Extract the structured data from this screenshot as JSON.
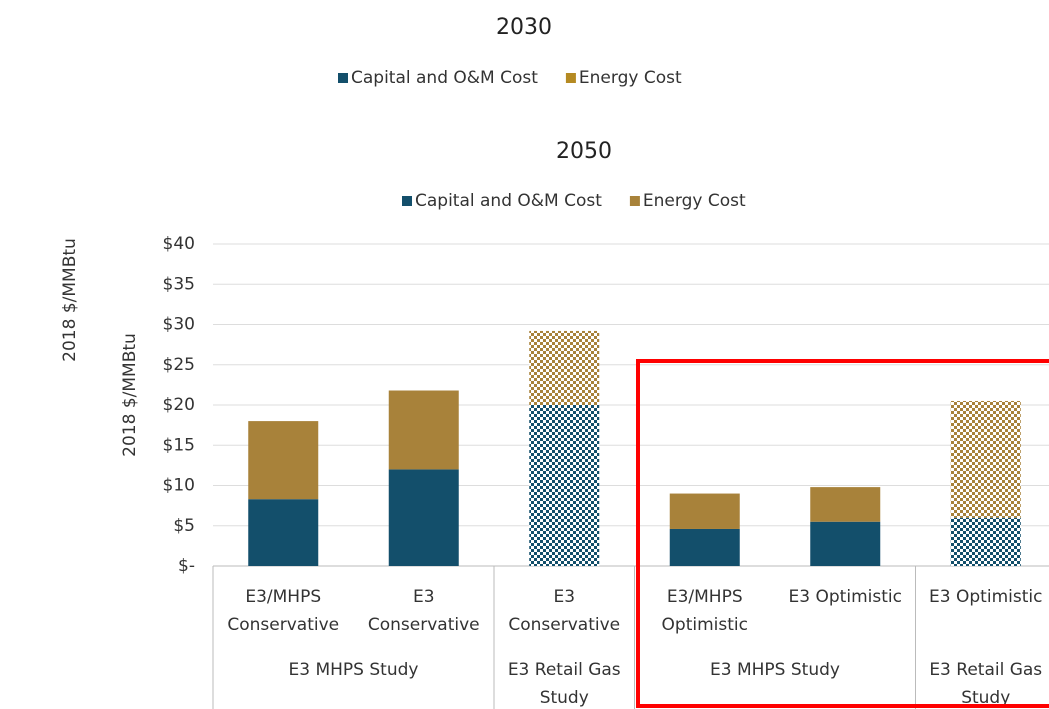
{
  "chart_data": [
    {
      "type": "legend-only",
      "title": "2030",
      "y_label": "2018 $/MMBtu",
      "series": [
        {
          "name": "Capital and O&M Cost",
          "color": "#134f6b"
        },
        {
          "name": "Energy Cost",
          "color": "#b58a22"
        }
      ]
    },
    {
      "type": "stacked-bar",
      "title": "2050",
      "y_label": "2018 $/MMBtu",
      "categories": [
        "E3/MHPS\nConservative",
        "E3\nConservative",
        "E3\nConservative",
        "E3/MHPS\nOptimistic",
        "E3 Optimistic",
        "E3 Optimistic"
      ],
      "groups": [
        {
          "label": "E3 MHPS Study",
          "size": 2
        },
        {
          "label": "E3 Retail Gas\nStudy",
          "size": 1
        },
        {
          "label": "E3 MHPS Study",
          "size": 2
        },
        {
          "label": "E3 Retail Gas\nStudy",
          "size": 1
        }
      ],
      "hatched": [
        false,
        false,
        true,
        false,
        false,
        true
      ],
      "series": [
        {
          "name": "Capital and O&M Cost",
          "color": "#134f6b",
          "values": [
            8.3,
            12,
            20,
            4.6,
            5.5,
            6
          ]
        },
        {
          "name": "Energy Cost",
          "color": "#a8823a",
          "values": [
            9.7,
            9.8,
            9.2,
            4.4,
            4.3,
            14.5
          ]
        }
      ],
      "ylim": [
        0,
        40
      ],
      "yticks": [
        {
          "value": 0,
          "label": "$-"
        },
        {
          "value": 5,
          "label": "$5"
        },
        {
          "value": 10,
          "label": "$10"
        },
        {
          "value": 15,
          "label": "$15"
        },
        {
          "value": 20,
          "label": "$20"
        },
        {
          "value": 25,
          "label": "$25"
        },
        {
          "value": 30,
          "label": "$30"
        },
        {
          "value": 35,
          "label": "$35"
        },
        {
          "value": 40,
          "label": "$40"
        }
      ],
      "grid": true
    }
  ]
}
